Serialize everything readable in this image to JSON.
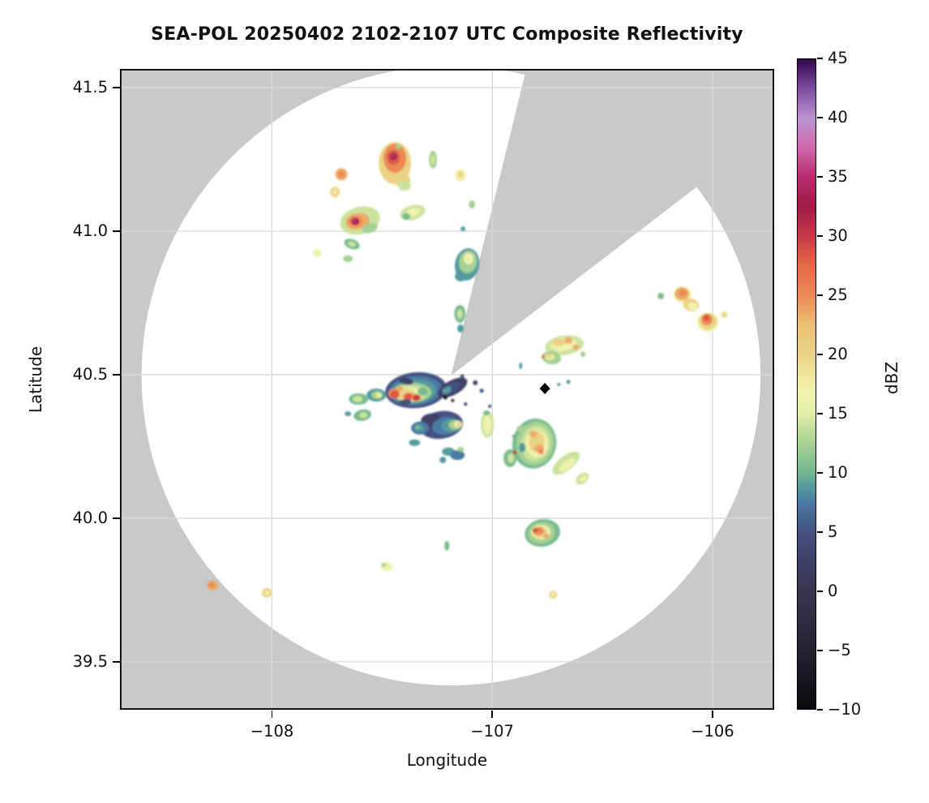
{
  "title": "SEA-POL 20250402 2102-2107 UTC Composite Reflectivity",
  "axes": {
    "xlabel": "Longitude",
    "ylabel": "Latitude",
    "xlim": [
      -108.69,
      -105.72
    ],
    "ylim": [
      39.333,
      41.565
    ],
    "xticks": [
      {
        "v": -108,
        "label": "−108"
      },
      {
        "v": -107,
        "label": "−107"
      },
      {
        "v": -106,
        "label": "−106"
      }
    ],
    "yticks": [
      {
        "v": 41.5,
        "label": "41.5"
      },
      {
        "v": 41.0,
        "label": "41.0"
      },
      {
        "v": 40.5,
        "label": "40.5"
      },
      {
        "v": 40.0,
        "label": "40.0"
      },
      {
        "v": 39.5,
        "label": "39.5"
      }
    ]
  },
  "colorbar": {
    "label": "dBZ",
    "min": -10,
    "max": 45,
    "tick_values": [
      45,
      40,
      35,
      30,
      25,
      20,
      15,
      10,
      5,
      0,
      -5,
      -10
    ],
    "tick_labels": [
      "45",
      "40",
      "35",
      "30",
      "25",
      "20",
      "15",
      "10",
      "5",
      "0",
      "−5",
      "−10"
    ],
    "gradient_stops": [
      [
        0,
        "#0a0a0e"
      ],
      [
        9.1,
        "#262233"
      ],
      [
        18.2,
        "#37344e"
      ],
      [
        22.7,
        "#3f4068"
      ],
      [
        27.3,
        "#44517f"
      ],
      [
        31.8,
        "#4b7aa2"
      ],
      [
        34.1,
        "#54999f"
      ],
      [
        36.4,
        "#74b791"
      ],
      [
        40.9,
        "#a6d193"
      ],
      [
        45.5,
        "#e2eda7"
      ],
      [
        49.1,
        "#f3f3b0"
      ],
      [
        54.5,
        "#ead385"
      ],
      [
        59.1,
        "#ecc077"
      ],
      [
        63.6,
        "#ec8a57"
      ],
      [
        68.2,
        "#e4694a"
      ],
      [
        72.7,
        "#c63a48"
      ],
      [
        77.3,
        "#9e1b47"
      ],
      [
        81.8,
        "#b82a70"
      ],
      [
        86.4,
        "#d06aad"
      ],
      [
        90.9,
        "#bb93cf"
      ],
      [
        95.5,
        "#7d4ba0"
      ],
      [
        100,
        "#30094a"
      ]
    ]
  },
  "map": {
    "background_hex": "#c9c9c9",
    "coverage_hex": "#ffffff",
    "grid_hex": "#d9d9d9",
    "border_hex": "#000000",
    "radar": {
      "lon": -107.187,
      "lat": 40.497
    },
    "coverage_radius_deg": {
      "lon": 1.405,
      "lat": 1.079
    },
    "blocked_sector_azimuths_deg": [
      13.8,
      52.5
    ],
    "site_marker": {
      "shape": "diamond",
      "hex": "#000000",
      "lon": -106.761,
      "lat": 40.452
    }
  },
  "chart_data": {
    "type": "heatmap",
    "title": "SEA-POL 20250402 2102-2107 UTC Composite Reflectivity",
    "xlabel": "Longitude",
    "ylabel": "Latitude",
    "xlim": [
      -108.69,
      -105.72
    ],
    "ylim": [
      39.33,
      41.57
    ],
    "grid": true,
    "legend_position": "right-colorbar",
    "colorbar_label": "dBZ",
    "colorbar_range": [
      -10,
      45
    ],
    "colorbar_tick_step": 5,
    "palette_dbz_low_to_high": [
      "#0d0c11",
      "#1b1824",
      "#262232",
      "#2f2b40",
      "#373450",
      "#3f4068",
      "#44517f",
      "#4b7aa2",
      "#549a9f",
      "#79bb90",
      "#a6d193",
      "#cce29d",
      "#eef2ae",
      "#ead385",
      "#edab68",
      "#ec8a57",
      "#dd5a46",
      "#c63a48",
      "#9e1b47",
      "#c23380",
      "#c08ccb",
      "#30094a"
    ],
    "palette_value_rule": "dBZ = -10 + 2.5 * color_index",
    "echo_cells_format": [
      "lon",
      "lat",
      "rx_px",
      "ry_px",
      "rotation_deg",
      "color_index"
    ],
    "echo_cells": [
      [
        -107.442,
        41.237,
        20,
        26,
        0,
        13
      ],
      [
        -107.442,
        41.254,
        14,
        18,
        0,
        15
      ],
      [
        -107.449,
        41.257,
        8,
        9,
        0,
        16
      ],
      [
        -107.449,
        41.26,
        4.5,
        4.5,
        0,
        18
      ],
      [
        -107.452,
        41.263,
        2.5,
        2.5,
        0,
        19
      ],
      [
        -107.427,
        41.294,
        3,
        3,
        0,
        10
      ],
      [
        -107.409,
        41.178,
        10,
        9,
        0,
        13
      ],
      [
        -107.398,
        41.158,
        8,
        6,
        0,
        11
      ],
      [
        -107.685,
        41.198,
        7.5,
        7.5,
        0,
        14
      ],
      [
        -107.685,
        41.198,
        4,
        4,
        0,
        15
      ],
      [
        -107.714,
        41.136,
        6,
        6.5,
        0,
        13
      ],
      [
        -107.714,
        41.136,
        3,
        3,
        0,
        12
      ],
      [
        -107.269,
        41.249,
        5,
        11,
        0,
        10
      ],
      [
        -107.269,
        41.249,
        2.8,
        6,
        0,
        11
      ],
      [
        -107.144,
        41.195,
        7,
        8,
        0,
        12
      ],
      [
        -107.144,
        41.198,
        3.5,
        4,
        0,
        13
      ],
      [
        -107.6,
        41.037,
        25,
        17,
        -15,
        11
      ],
      [
        -107.611,
        41.034,
        15,
        10,
        -12,
        14
      ],
      [
        -107.622,
        41.034,
        9,
        7,
        0,
        15
      ],
      [
        -107.622,
        41.034,
        5,
        4.5,
        0,
        18
      ],
      [
        -107.626,
        41.037,
        2.5,
        2.5,
        0,
        19
      ],
      [
        -107.556,
        41.011,
        10,
        6,
        -20,
        10
      ],
      [
        -107.361,
        41.065,
        16,
        9,
        -15,
        11
      ],
      [
        -107.361,
        41.065,
        9,
        5,
        -15,
        12
      ],
      [
        -107.39,
        41.051,
        5,
        4,
        0,
        9
      ],
      [
        -107.092,
        41.093,
        4,
        5,
        0,
        10
      ],
      [
        -107.133,
        41.008,
        3,
        3,
        0,
        8
      ],
      [
        -107.637,
        40.955,
        10,
        6,
        20,
        9
      ],
      [
        -107.637,
        40.955,
        5,
        3,
        20,
        11
      ],
      [
        -107.795,
        40.924,
        5,
        5,
        0,
        12
      ],
      [
        -107.655,
        40.904,
        6,
        4,
        0,
        10
      ],
      [
        -107.114,
        40.884,
        15,
        20,
        10,
        8
      ],
      [
        -107.11,
        40.893,
        11,
        14,
        10,
        10
      ],
      [
        -107.107,
        40.904,
        6,
        7,
        0,
        12
      ],
      [
        -107.144,
        40.842,
        7,
        6,
        0,
        8
      ],
      [
        -107.147,
        40.712,
        7,
        11,
        0,
        9
      ],
      [
        -107.147,
        40.712,
        3.5,
        6,
        0,
        11
      ],
      [
        -107.144,
        40.661,
        4,
        5,
        0,
        8
      ],
      [
        -107.346,
        40.446,
        38,
        22,
        -5,
        6
      ],
      [
        -107.35,
        40.444,
        33,
        18,
        -5,
        7
      ],
      [
        -107.357,
        40.441,
        28,
        15,
        -5,
        8
      ],
      [
        -107.364,
        40.438,
        24,
        12,
        0,
        10
      ],
      [
        -107.372,
        40.435,
        20,
        10,
        0,
        11
      ],
      [
        -107.379,
        40.432,
        16,
        8.5,
        0,
        12
      ],
      [
        -107.39,
        40.431,
        12,
        7,
        0,
        13
      ],
      [
        -107.446,
        40.434,
        7,
        6,
        0,
        15
      ],
      [
        -107.442,
        40.431,
        5.5,
        5,
        0,
        16
      ],
      [
        -107.379,
        40.423,
        7,
        5,
        0,
        15
      ],
      [
        -107.379,
        40.423,
        5,
        4,
        0,
        16
      ],
      [
        -107.346,
        40.42,
        6,
        4.5,
        0,
        15
      ],
      [
        -107.344,
        40.42,
        4.5,
        3.5,
        0,
        17
      ],
      [
        -107.419,
        40.452,
        4,
        3,
        0,
        14
      ],
      [
        -107.316,
        40.441,
        6,
        5,
        0,
        9
      ],
      [
        -107.39,
        40.477,
        9,
        4,
        8,
        5
      ],
      [
        -107.398,
        40.403,
        8,
        4,
        -10,
        6
      ],
      [
        -107.18,
        40.455,
        20,
        9,
        -28,
        5
      ],
      [
        -107.188,
        40.452,
        13,
        6,
        -28,
        6
      ],
      [
        -107.206,
        40.446,
        6,
        4,
        -28,
        8
      ],
      [
        -107.213,
        40.421,
        2.5,
        2.5,
        0,
        0
      ],
      [
        -107.18,
        40.41,
        2,
        2,
        0,
        2
      ],
      [
        -107.077,
        40.472,
        3,
        3,
        0,
        5
      ],
      [
        -107.048,
        40.444,
        2.5,
        2.5,
        0,
        6
      ],
      [
        -107.121,
        40.398,
        2,
        2,
        0,
        4
      ],
      [
        -107.136,
        40.494,
        2.5,
        2.5,
        0,
        6
      ],
      [
        -107.607,
        40.415,
        12,
        7,
        0,
        9
      ],
      [
        -107.611,
        40.415,
        6,
        4,
        0,
        11
      ],
      [
        -107.526,
        40.429,
        12,
        8,
        0,
        8
      ],
      [
        -107.523,
        40.429,
        7,
        5,
        0,
        10
      ],
      [
        -107.515,
        40.429,
        3.5,
        3,
        0,
        12
      ],
      [
        -107.589,
        40.359,
        11,
        7,
        -10,
        9
      ],
      [
        -107.585,
        40.359,
        5,
        3.5,
        0,
        11
      ],
      [
        -107.655,
        40.364,
        4,
        3,
        0,
        8
      ],
      [
        -107.232,
        40.325,
        27,
        17,
        -8,
        6
      ],
      [
        -107.276,
        40.339,
        13,
        9,
        0,
        5
      ],
      [
        -107.21,
        40.322,
        17,
        11,
        -8,
        7
      ],
      [
        -107.188,
        40.322,
        12,
        8,
        0,
        8
      ],
      [
        -107.169,
        40.325,
        8,
        6,
        0,
        10
      ],
      [
        -107.155,
        40.328,
        5,
        4,
        0,
        12
      ],
      [
        -107.151,
        40.328,
        2.5,
        2.5,
        0,
        13
      ],
      [
        -107.328,
        40.314,
        11,
        8,
        0,
        7
      ],
      [
        -107.331,
        40.314,
        6,
        4.5,
        0,
        8
      ],
      [
        -107.339,
        40.317,
        3,
        3,
        0,
        9
      ],
      [
        -107.353,
        40.263,
        7,
        4,
        0,
        8
      ],
      [
        -107.199,
        40.232,
        8,
        5,
        0,
        8
      ],
      [
        -107.158,
        40.22,
        9,
        6,
        0,
        7
      ],
      [
        -107.143,
        40.24,
        4,
        3,
        0,
        10
      ],
      [
        -107.224,
        40.203,
        4,
        4,
        0,
        8
      ],
      [
        -107.022,
        40.328,
        8,
        17,
        0,
        11
      ],
      [
        -107.022,
        40.325,
        5,
        12,
        0,
        12
      ],
      [
        -107.026,
        40.367,
        4,
        3,
        0,
        9
      ],
      [
        -107.011,
        40.39,
        2,
        2,
        0,
        6
      ],
      [
        -106.901,
        40.285,
        2,
        2,
        0,
        6
      ],
      [
        -106.809,
        40.26,
        27,
        31,
        12,
        9
      ],
      [
        -106.805,
        40.26,
        23,
        27,
        12,
        10
      ],
      [
        -106.802,
        40.26,
        18,
        22,
        12,
        11
      ],
      [
        -106.798,
        40.26,
        14,
        17,
        0,
        12
      ],
      [
        -106.798,
        40.266,
        10,
        13,
        0,
        13
      ],
      [
        -106.813,
        40.294,
        5,
        4,
        0,
        14
      ],
      [
        -106.787,
        40.243,
        6,
        5,
        0,
        14
      ],
      [
        -106.779,
        40.232,
        3.5,
        3.5,
        0,
        15
      ],
      [
        -106.864,
        40.246,
        4,
        6,
        0,
        8
      ],
      [
        -106.919,
        40.209,
        8,
        11,
        0,
        9
      ],
      [
        -106.915,
        40.209,
        4,
        6,
        0,
        11
      ],
      [
        -106.897,
        40.229,
        2.5,
        2.5,
        0,
        17
      ],
      [
        -106.868,
        40.311,
        6,
        4,
        0,
        10
      ],
      [
        -106.665,
        40.192,
        20,
        9,
        -38,
        11
      ],
      [
        -106.658,
        40.186,
        12,
        5,
        -38,
        12
      ],
      [
        -106.591,
        40.138,
        9,
        6,
        -38,
        11
      ],
      [
        -106.587,
        40.138,
        5,
        3,
        -38,
        12
      ],
      [
        -108.27,
        39.766,
        7,
        6,
        0,
        14
      ],
      [
        -108.274,
        39.768,
        4,
        3.5,
        0,
        15
      ],
      [
        -108.023,
        39.74,
        6,
        6,
        0,
        13
      ],
      [
        -108.023,
        39.74,
        3,
        3,
        0,
        12
      ],
      [
        -107.478,
        39.831,
        7,
        6,
        0,
        12
      ],
      [
        -107.493,
        39.837,
        3,
        2.5,
        0,
        10
      ],
      [
        -107.206,
        39.904,
        3,
        6,
        0,
        9
      ],
      [
        -106.772,
        39.949,
        22,
        17,
        -10,
        9
      ],
      [
        -106.776,
        39.949,
        17,
        13,
        -10,
        10
      ],
      [
        -106.779,
        39.952,
        12,
        9,
        0,
        12
      ],
      [
        -106.783,
        39.952,
        9,
        7,
        0,
        13
      ],
      [
        -106.791,
        39.955,
        7,
        5,
        0,
        15
      ],
      [
        -106.805,
        39.958,
        3.5,
        3,
        0,
        16
      ],
      [
        -106.754,
        39.938,
        4,
        3,
        0,
        14
      ],
      [
        -106.71,
        39.943,
        3,
        3,
        0,
        9
      ],
      [
        -106.724,
        39.734,
        5,
        5,
        0,
        13
      ],
      [
        -106.724,
        39.734,
        2.5,
        2.5,
        0,
        12
      ],
      [
        -106.234,
        40.774,
        4,
        4,
        0,
        9
      ],
      [
        -106.136,
        40.779,
        11,
        10,
        0,
        12
      ],
      [
        -106.139,
        40.782,
        9,
        8,
        0,
        14
      ],
      [
        -106.136,
        40.785,
        5,
        4.5,
        0,
        15
      ],
      [
        -106.098,
        40.743,
        10,
        8,
        20,
        13
      ],
      [
        -106.09,
        40.737,
        6,
        5,
        20,
        12
      ],
      [
        -106.021,
        40.683,
        13,
        12,
        0,
        12
      ],
      [
        -106.021,
        40.686,
        11,
        10,
        0,
        13
      ],
      [
        -106.025,
        40.692,
        7,
        7,
        0,
        15
      ],
      [
        -106.028,
        40.698,
        4,
        4,
        0,
        16
      ],
      [
        -105.947,
        40.709,
        5,
        5,
        0,
        12
      ],
      [
        -105.947,
        40.709,
        2.5,
        2.5,
        0,
        13
      ],
      [
        -106.672,
        40.602,
        24,
        12,
        -8,
        11
      ],
      [
        -106.676,
        40.605,
        16,
        8,
        -8,
        12
      ],
      [
        -106.698,
        40.613,
        8,
        5,
        0,
        13
      ],
      [
        -106.654,
        40.619,
        5,
        4,
        0,
        14
      ],
      [
        -106.621,
        40.596,
        4,
        3,
        0,
        14
      ],
      [
        -106.731,
        40.559,
        12,
        8,
        10,
        10
      ],
      [
        -106.739,
        40.562,
        6,
        4,
        0,
        12
      ],
      [
        -106.743,
        40.565,
        4,
        3,
        0,
        13
      ],
      [
        -106.768,
        40.562,
        2,
        2,
        0,
        16
      ],
      [
        -106.588,
        40.571,
        3,
        3.5,
        0,
        10
      ],
      [
        -106.871,
        40.531,
        2,
        4,
        0,
        8
      ],
      [
        -106.654,
        40.475,
        2.5,
        2.5,
        0,
        8
      ],
      [
        -106.698,
        40.466,
        2,
        2,
        0,
        8
      ]
    ]
  }
}
